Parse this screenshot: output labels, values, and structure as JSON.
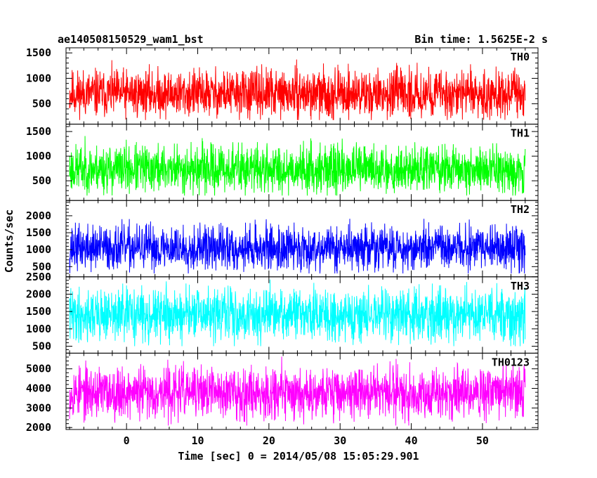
{
  "header": {
    "title": "ae140508150529_wam1_bst",
    "bin_time": "Bin time: 1.5625E-2 s"
  },
  "chart_data": {
    "type": "line",
    "x_range": [
      -8,
      56
    ],
    "xlim": [
      -8.5,
      57.8
    ],
    "x_ticks": [
      0,
      10,
      20,
      30,
      40,
      50
    ],
    "xlabel": "Time [sec] 0 = 2014/05/08 15:05:29.901",
    "ylabel": "Counts/sec",
    "panels": [
      {
        "name": "TH0",
        "color": "#ff0000",
        "ylim": [
          100,
          1600
        ],
        "yticks": [
          500,
          1000,
          1500
        ],
        "mean": 700,
        "sigma": 230,
        "min": 180,
        "max": 1600,
        "seed": 11
      },
      {
        "name": "TH1",
        "color": "#00ff00",
        "ylim": [
          100,
          1650
        ],
        "yticks": [
          500,
          1000,
          1500
        ],
        "mean": 740,
        "sigma": 240,
        "min": 200,
        "max": 1650,
        "seed": 23
      },
      {
        "name": "TH2",
        "color": "#0000ff",
        "ylim": [
          200,
          2450
        ],
        "yticks": [
          500,
          1000,
          1500,
          2000
        ],
        "mean": 1050,
        "sigma": 330,
        "min": 300,
        "max": 2450,
        "seed": 37
      },
      {
        "name": "TH3",
        "color": "#00ffff",
        "ylim": [
          300,
          2500
        ],
        "yticks": [
          500,
          1000,
          1500,
          2000,
          2500
        ],
        "mean": 1400,
        "sigma": 370,
        "min": 500,
        "max": 2500,
        "seed": 41
      },
      {
        "name": "TH0123",
        "color": "#ff00ff",
        "ylim": [
          1900,
          5800
        ],
        "yticks": [
          2000,
          3000,
          4000,
          5000
        ],
        "mean": 3800,
        "sigma": 650,
        "min": 2100,
        "max": 5700,
        "seed": 53
      }
    ]
  }
}
